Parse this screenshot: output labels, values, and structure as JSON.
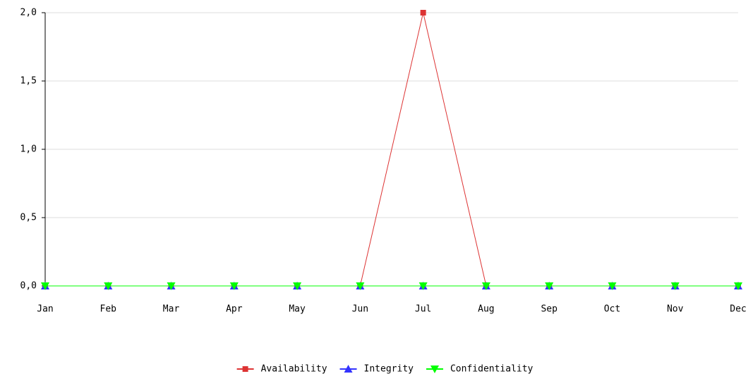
{
  "chart_data": {
    "type": "line",
    "categories": [
      "Jan",
      "Feb",
      "Mar",
      "Apr",
      "May",
      "Jun",
      "Jul",
      "Aug",
      "Sep",
      "Oct",
      "Nov",
      "Dec"
    ],
    "series": [
      {
        "name": "Availability",
        "color": "#dd3333",
        "marker": "square",
        "values": [
          0,
          0,
          0,
          0,
          0,
          0,
          2,
          0,
          0,
          0,
          0,
          0
        ]
      },
      {
        "name": "Integrity",
        "color": "#3333ff",
        "marker": "triangle-up",
        "values": [
          0,
          0,
          0,
          0,
          0,
          0,
          0,
          0,
          0,
          0,
          0,
          0
        ]
      },
      {
        "name": "Confidentiality",
        "color": "#00ff00",
        "marker": "triangle-down",
        "values": [
          0,
          0,
          0,
          0,
          0,
          0,
          0,
          0,
          0,
          0,
          0,
          0
        ]
      }
    ],
    "ylim": [
      0,
      2
    ],
    "yticks": [
      {
        "value": 0,
        "label": "0,0"
      },
      {
        "value": 0.5,
        "label": "0,5"
      },
      {
        "value": 1,
        "label": "1,0"
      },
      {
        "value": 1.5,
        "label": "1,5"
      },
      {
        "value": 2,
        "label": "2,0"
      }
    ],
    "grid": true,
    "legend": "bottom"
  }
}
